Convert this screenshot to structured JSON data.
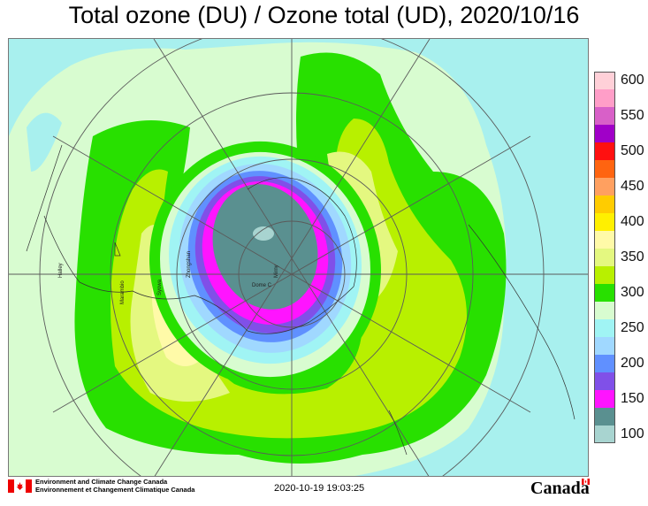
{
  "title": "Total ozone (DU) / Ozone total (UD), 2020/10/16",
  "legend": {
    "items": [
      {
        "value": "600",
        "color": "#ffd0d8"
      },
      {
        "value": "",
        "color": "#ff9ec8"
      },
      {
        "value": "550",
        "color": "#d860c8"
      },
      {
        "value": "",
        "color": "#a000c8"
      },
      {
        "value": "500",
        "color": "#ff1010"
      },
      {
        "value": "",
        "color": "#ff6410"
      },
      {
        "value": "450",
        "color": "#ffa060"
      },
      {
        "value": "",
        "color": "#ffcc00"
      },
      {
        "value": "400",
        "color": "#fff000"
      },
      {
        "value": "",
        "color": "#fffaa8"
      },
      {
        "value": "350",
        "color": "#e4f880"
      },
      {
        "value": "",
        "color": "#b8f000"
      },
      {
        "value": "300",
        "color": "#28e000"
      },
      {
        "value": "",
        "color": "#d8fcd0"
      },
      {
        "value": "250",
        "color": "#a0f4f4"
      },
      {
        "value": "",
        "color": "#a0d8ff"
      },
      {
        "value": "200",
        "color": "#6090ff"
      },
      {
        "value": "",
        "color": "#8050e8"
      },
      {
        "value": "150",
        "color": "#ff14ff"
      },
      {
        "value": "",
        "color": "#5a9090"
      },
      {
        "value": "100",
        "color": "#a8d4d0"
      }
    ]
  },
  "map_labels": [
    "Dome C",
    "Halley",
    "Marambio",
    "Syowa",
    "Zhongshan",
    "Mirny"
  ],
  "footer": {
    "org_en": "Environment and Climate Change Canada",
    "org_fr": "Environnement et Changement Climatique Canada",
    "timestamp": "2020-10-19 19:03:25",
    "wordmark": "Canada"
  }
}
